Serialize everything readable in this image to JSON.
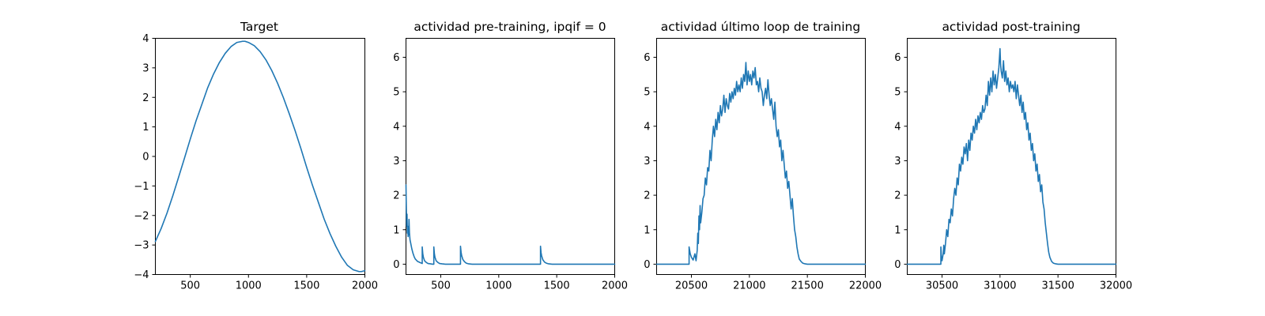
{
  "chart_data": [
    {
      "type": "line",
      "title": "Target",
      "xlim": [
        200,
        2000
      ],
      "ylim": [
        -4,
        4
      ],
      "xticks": [
        500,
        1000,
        1500,
        2000
      ],
      "yticks": [
        -4,
        -3,
        -2,
        -1,
        0,
        1,
        2,
        3,
        4
      ],
      "xticklabels": [
        "500",
        "1000",
        "1500",
        "2000"
      ],
      "yticklabels": [
        "−4",
        "−3",
        "−2",
        "−1",
        "0",
        "1",
        "2",
        "3",
        "4"
      ],
      "series": [
        {
          "color": "#1f77b4",
          "x": [
            200,
            250,
            300,
            350,
            400,
            450,
            500,
            550,
            600,
            650,
            700,
            750,
            800,
            850,
            900,
            950,
            970,
            1000,
            1050,
            1100,
            1150,
            1200,
            1250,
            1300,
            1350,
            1400,
            1450,
            1500,
            1550,
            1600,
            1650,
            1700,
            1750,
            1800,
            1850,
            1900,
            1950,
            1970,
            2000
          ],
          "y": [
            -2.88,
            -2.44,
            -1.92,
            -1.33,
            -0.7,
            -0.06,
            0.59,
            1.21,
            1.77,
            2.33,
            2.79,
            3.18,
            3.49,
            3.72,
            3.86,
            3.9,
            3.9,
            3.86,
            3.75,
            3.55,
            3.27,
            2.91,
            2.48,
            1.99,
            1.45,
            0.88,
            0.27,
            -0.37,
            -0.98,
            -1.55,
            -2.12,
            -2.61,
            -3.04,
            -3.41,
            -3.69,
            -3.84,
            -3.9,
            -3.9,
            -3.87
          ]
        }
      ]
    },
    {
      "type": "line",
      "title": "actividad pre-training, ipqif = 0",
      "xlim": [
        200,
        2000
      ],
      "ylim": [
        -0.3,
        6.55
      ],
      "xticks": [
        500,
        1000,
        1500,
        2000
      ],
      "yticks": [
        0,
        1,
        2,
        3,
        4,
        5,
        6
      ],
      "xticklabels": [
        "500",
        "1000",
        "1500",
        "2000"
      ],
      "yticklabels": [
        "0",
        "1",
        "2",
        "3",
        "4",
        "5",
        "6"
      ],
      "series": [
        {
          "color": "#1f77b4",
          "x": [
            200,
            203,
            206,
            209,
            212,
            215,
            218,
            220,
            223,
            226,
            230,
            235,
            240,
            250,
            260,
            270,
            280,
            300,
            320,
            340,
            340,
            345,
            350,
            360,
            375,
            390,
            410,
            430,
            440,
            440,
            445,
            450,
            460,
            475,
            490,
            510,
            540,
            580,
            620,
            670,
            670,
            675,
            680,
            690,
            705,
            720,
            740,
            770,
            820,
            900,
            1000,
            1100,
            1200,
            1300,
            1360,
            1360,
            1365,
            1370,
            1380,
            1395,
            1410,
            1430,
            1460,
            1500,
            1600,
            1700,
            1800,
            1900,
            2000
          ],
          "y": [
            2.3,
            1.6,
            1.1,
            1.45,
            0.9,
            1.1,
            0.8,
            1.05,
            0.85,
            1.3,
            0.9,
            0.7,
            0.62,
            0.45,
            0.32,
            0.22,
            0.15,
            0.08,
            0.05,
            0.02,
            0.5,
            0.3,
            0.2,
            0.1,
            0.05,
            0.02,
            0.01,
            0.0,
            0.0,
            0.5,
            0.3,
            0.2,
            0.1,
            0.05,
            0.02,
            0.01,
            0.0,
            0.0,
            0.0,
            0.0,
            0.52,
            0.35,
            0.25,
            0.14,
            0.07,
            0.03,
            0.01,
            0.0,
            0.0,
            0.0,
            0.0,
            0.0,
            0.0,
            0.0,
            0.0,
            0.52,
            0.33,
            0.24,
            0.13,
            0.06,
            0.03,
            0.01,
            0.0,
            0.0,
            0.0,
            0.0,
            0.0,
            0.0,
            0.0
          ]
        }
      ]
    },
    {
      "type": "line",
      "title": "actividad último loop de training",
      "xlim": [
        20200,
        22000
      ],
      "ylim": [
        -0.3,
        6.55
      ],
      "xticks": [
        20500,
        21000,
        21500,
        22000
      ],
      "yticks": [
        0,
        1,
        2,
        3,
        4,
        5,
        6
      ],
      "xticklabels": [
        "20500",
        "21000",
        "21500",
        "22000"
      ],
      "yticklabels": [
        "0",
        "1",
        "2",
        "3",
        "4",
        "5",
        "6"
      ],
      "series": [
        {
          "color": "#1f77b4",
          "x": [
            20200,
            20300,
            20400,
            20480,
            20480,
            20490,
            20500,
            20515,
            20530,
            20540,
            20550,
            20555,
            20560,
            20565,
            20570,
            20575,
            20580,
            20590,
            20600,
            20610,
            20620,
            20630,
            20640,
            20650,
            20660,
            20670,
            20680,
            20690,
            20700,
            20710,
            20720,
            20730,
            20740,
            20750,
            20760,
            20770,
            20780,
            20790,
            20800,
            20810,
            20820,
            20830,
            20840,
            20850,
            20860,
            20870,
            20880,
            20890,
            20900,
            20910,
            20920,
            20930,
            20940,
            20950,
            20960,
            20970,
            20980,
            20990,
            21000,
            21010,
            21020,
            21030,
            21040,
            21050,
            21060,
            21070,
            21080,
            21090,
            21100,
            21110,
            21120,
            21130,
            21140,
            21150,
            21160,
            21170,
            21180,
            21190,
            21200,
            21210,
            21220,
            21230,
            21240,
            21250,
            21260,
            21270,
            21280,
            21290,
            21300,
            21310,
            21320,
            21330,
            21340,
            21350,
            21360,
            21370,
            21380,
            21390,
            21400,
            21410,
            21420,
            21430,
            21445,
            21460,
            21480,
            21500,
            21550,
            21600,
            21700,
            21800,
            21900,
            22000
          ],
          "y": [
            0.0,
            0.0,
            0.0,
            0.0,
            0.5,
            0.3,
            0.2,
            0.12,
            0.3,
            0.1,
            0.4,
            0.9,
            0.6,
            1.4,
            1.0,
            1.7,
            1.2,
            1.5,
            1.9,
            2.0,
            2.5,
            2.3,
            2.8,
            2.7,
            3.3,
            3.0,
            3.6,
            4.0,
            3.7,
            4.2,
            3.9,
            4.4,
            4.1,
            4.6,
            4.3,
            4.5,
            4.9,
            4.4,
            4.8,
            4.6,
            4.5,
            4.95,
            4.7,
            5.0,
            4.8,
            5.1,
            4.9,
            5.3,
            5.0,
            5.2,
            5.0,
            5.4,
            5.1,
            5.5,
            5.3,
            5.85,
            5.2,
            5.6,
            5.3,
            5.5,
            5.2,
            5.6,
            5.4,
            5.7,
            5.2,
            5.3,
            5.0,
            5.4,
            5.1,
            5.0,
            4.6,
            4.9,
            5.1,
            4.8,
            5.35,
            4.9,
            4.6,
            4.8,
            4.5,
            4.2,
            4.7,
            4.0,
            3.7,
            3.9,
            3.4,
            3.6,
            3.0,
            3.3,
            2.9,
            2.5,
            2.7,
            2.2,
            2.4,
            2.0,
            1.6,
            1.9,
            1.4,
            1.0,
            0.8,
            0.5,
            0.3,
            0.15,
            0.08,
            0.03,
            0.01,
            0.0,
            0.0,
            0.0,
            0.0,
            0.0,
            0.0,
            0.0
          ]
        }
      ]
    },
    {
      "type": "line",
      "title": "actividad post-training",
      "xlim": [
        30200,
        32000
      ],
      "ylim": [
        -0.3,
        6.55
      ],
      "xticks": [
        30500,
        31000,
        31500,
        32000
      ],
      "yticks": [
        0,
        1,
        2,
        3,
        4,
        5,
        6
      ],
      "xticklabels": [
        "30500",
        "31000",
        "31500",
        "32000"
      ],
      "yticklabels": [
        "0",
        "1",
        "2",
        "3",
        "4",
        "5",
        "6"
      ],
      "series": [
        {
          "color": "#1f77b4",
          "x": [
            30200,
            30300,
            30400,
            30490,
            30490,
            30495,
            30500,
            30510,
            30515,
            30520,
            30530,
            30540,
            30550,
            30560,
            30570,
            30580,
            30590,
            30600,
            30610,
            30620,
            30630,
            30640,
            30650,
            30660,
            30670,
            30680,
            30690,
            30700,
            30710,
            30720,
            30730,
            30740,
            30750,
            30760,
            30770,
            30780,
            30790,
            30800,
            30810,
            30820,
            30830,
            30840,
            30850,
            30860,
            30870,
            30880,
            30890,
            30900,
            30910,
            30920,
            30930,
            30940,
            30950,
            30960,
            30970,
            30980,
            30990,
            31000,
            31005,
            31010,
            31020,
            31030,
            31040,
            31050,
            31060,
            31070,
            31080,
            31090,
            31100,
            31110,
            31120,
            31130,
            31140,
            31150,
            31160,
            31170,
            31180,
            31190,
            31200,
            31210,
            31220,
            31230,
            31240,
            31250,
            31260,
            31270,
            31280,
            31290,
            31300,
            31310,
            31320,
            31330,
            31340,
            31350,
            31360,
            31370,
            31380,
            31390,
            31400,
            31410,
            31420,
            31430,
            31445,
            31460,
            31480,
            31500,
            31550,
            31600,
            31700,
            31800,
            31900,
            32000
          ],
          "y": [
            0.0,
            0.0,
            0.0,
            0.0,
            0.5,
            0.2,
            0.1,
            0.3,
            0.55,
            0.3,
            0.6,
            1.0,
            0.8,
            1.3,
            1.2,
            1.6,
            1.4,
            1.9,
            2.2,
            2.0,
            2.5,
            2.3,
            2.9,
            2.7,
            3.1,
            2.9,
            3.4,
            3.2,
            3.5,
            3.0,
            3.6,
            3.3,
            3.8,
            3.6,
            4.0,
            3.8,
            4.2,
            3.9,
            4.3,
            4.1,
            4.4,
            4.2,
            4.6,
            4.4,
            4.5,
            4.9,
            4.6,
            5.3,
            4.9,
            5.4,
            5.0,
            5.6,
            5.2,
            5.5,
            5.1,
            5.4,
            5.7,
            6.25,
            5.8,
            5.6,
            5.4,
            5.9,
            5.3,
            5.6,
            5.2,
            5.4,
            5.0,
            5.3,
            5.1,
            5.2,
            5.0,
            5.3,
            4.8,
            5.2,
            4.9,
            4.6,
            4.9,
            4.4,
            4.7,
            4.2,
            4.4,
            3.9,
            4.1,
            3.6,
            3.8,
            3.3,
            3.5,
            3.0,
            3.2,
            2.7,
            2.9,
            2.4,
            2.6,
            2.1,
            2.3,
            1.8,
            1.6,
            1.2,
            0.9,
            0.6,
            0.35,
            0.2,
            0.08,
            0.03,
            0.01,
            0.0,
            0.0,
            0.0,
            0.0,
            0.0,
            0.0,
            0.0
          ]
        }
      ]
    }
  ]
}
